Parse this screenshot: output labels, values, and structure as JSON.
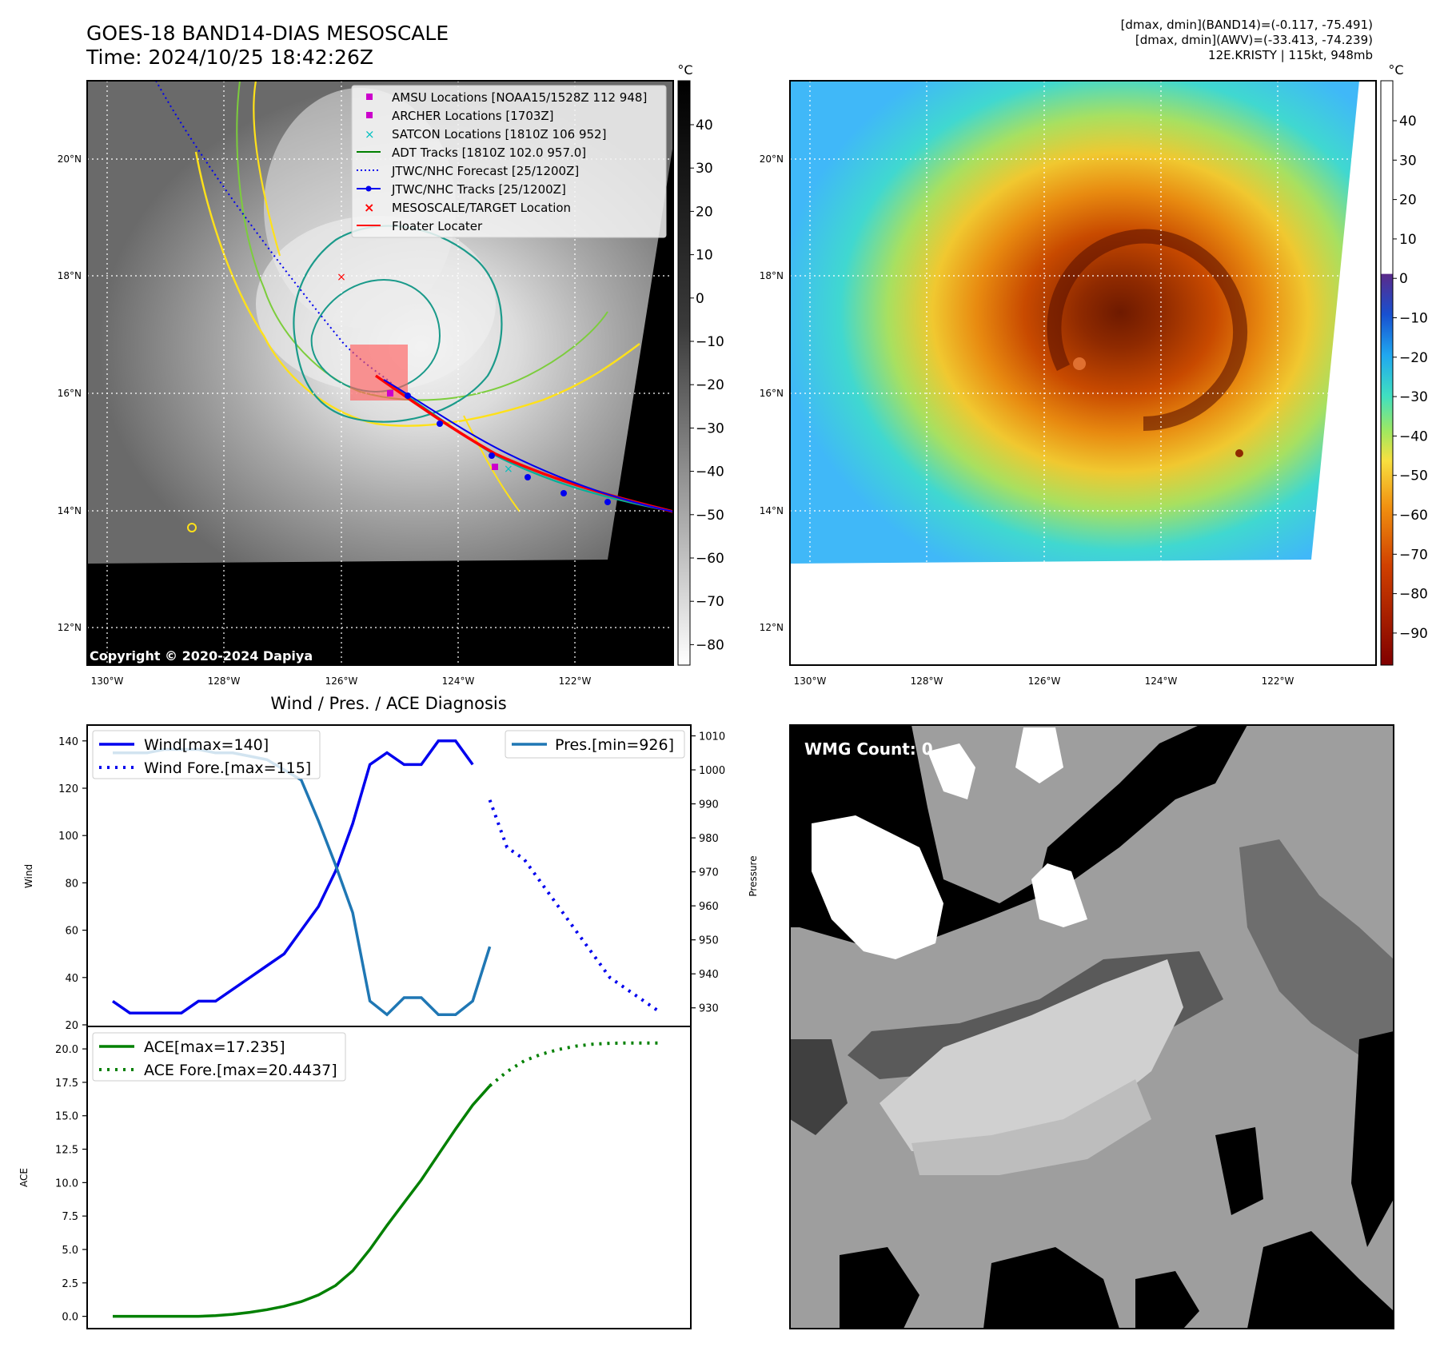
{
  "header": {
    "title_line1": "GOES-18 BAND14-DIAS MESOSCALE",
    "title_line2": "Time: 2024/10/25 18:42:26Z",
    "info_line1": "[dmax, dmin](BAND14)=(-0.117, -75.491)",
    "info_line2": "[dmax, dmin](AWV)=(-33.413, -74.239)",
    "info_line3": "12E.KRISTY | 115kt, 948mb"
  },
  "colors": {
    "wind": "#0000ee",
    "pressure": "#1f77b4",
    "ace": "#008000",
    "track_red": "#ff0000",
    "magenta": "#cc00cc",
    "cyan": "#00c0c0",
    "contour_yellow": "#ffe119",
    "contour_green": "#7ccd3c",
    "contour_teal": "#1a9a8a"
  },
  "maps": {
    "unit_label": "°C",
    "lon_ticks": [
      "130°W",
      "128°W",
      "126°W",
      "124°W",
      "122°W"
    ],
    "lat_ticks": [
      "20°N",
      "18°N",
      "16°N",
      "14°N",
      "12°N"
    ],
    "copyright": "Copyright © 2020-2024 Dapiya",
    "left_colorbar_ticks": [
      "40",
      "30",
      "20",
      "10",
      "0",
      "−10",
      "−20",
      "−30",
      "−40",
      "−50",
      "−60",
      "−70",
      "−80"
    ],
    "right_colorbar_ticks": [
      "40",
      "30",
      "20",
      "10",
      "0",
      "−10",
      "−20",
      "−30",
      "−40",
      "−50",
      "−60",
      "−70",
      "−80",
      "−90"
    ]
  },
  "legend": {
    "amsu": "AMSU Locations [NOAA15/1528Z 112 948]",
    "archer": "ARCHER Locations [1703Z]",
    "satcon": "SATCON Locations [1810Z 106 952]",
    "adt": "ADT Tracks [1810Z 102.0 957.0]",
    "fcst": "JTWC/NHC Forecast [25/1200Z]",
    "tracks": "JTWC/NHC Tracks [25/1200Z]",
    "meso": "MESOSCALE/TARGET Location",
    "floater": "Floater Locater"
  },
  "wmg": {
    "label": "WMG Count: 0"
  },
  "chart_data": [
    {
      "type": "line",
      "title": "Wind / Pres. / ACE Diagnosis",
      "ylabel": "Wind",
      "y2label": "Pressure",
      "ylim": [
        20,
        145
      ],
      "y2lim": [
        925,
        1012
      ],
      "yticks": [
        20,
        40,
        60,
        80,
        100,
        120,
        140
      ],
      "y2ticks": [
        930,
        940,
        950,
        960,
        970,
        980,
        990,
        1000,
        1010
      ],
      "series": [
        {
          "name": "Wind[max=140]",
          "style": "solid",
          "x": [
            0,
            1,
            2,
            3,
            4,
            5,
            6,
            7,
            8,
            9,
            10,
            11,
            12,
            13,
            14,
            15,
            16,
            17,
            18,
            19,
            20,
            21
          ],
          "values": [
            30,
            25,
            25,
            25,
            25,
            30,
            30,
            35,
            40,
            45,
            50,
            60,
            70,
            85,
            105,
            130,
            135,
            130,
            130,
            140,
            140,
            130
          ]
        },
        {
          "name": "Wind Fore.[max=115]",
          "style": "dotted",
          "x": [
            22,
            23,
            24,
            25,
            26,
            27,
            28,
            29,
            30,
            31,
            32
          ],
          "values": [
            115,
            95,
            90,
            80,
            70,
            60,
            50,
            40,
            35,
            30,
            25
          ]
        },
        {
          "name": "Pres.[min=926]",
          "style": "solid",
          "axis": "y2",
          "x": [
            0,
            1,
            2,
            3,
            4,
            5,
            6,
            7,
            8,
            9,
            10,
            11,
            12,
            13,
            14,
            15,
            16,
            17,
            18,
            19,
            20,
            21,
            22
          ],
          "values": [
            1005,
            1005,
            1005,
            1006,
            1006,
            1006,
            1005,
            1005,
            1004,
            1003,
            1000,
            997,
            985,
            972,
            958,
            932,
            928,
            933,
            933,
            928,
            928,
            932,
            948
          ]
        }
      ]
    },
    {
      "type": "line",
      "ylabel": "ACE",
      "ylim": [
        -0.8,
        21.5
      ],
      "yticks": [
        "0.0",
        "2.5",
        "5.0",
        "7.5",
        "10.0",
        "12.5",
        "15.0",
        "17.5",
        "20.0"
      ],
      "series": [
        {
          "name": "ACE[max=17.235]",
          "style": "solid",
          "x": [
            0,
            1,
            2,
            3,
            4,
            5,
            6,
            7,
            8,
            9,
            10,
            11,
            12,
            13,
            14,
            15,
            16,
            17,
            18,
            19,
            20,
            21,
            22
          ],
          "values": [
            0,
            0,
            0,
            0,
            0,
            0,
            0.05,
            0.15,
            0.3,
            0.5,
            0.75,
            1.1,
            1.6,
            2.3,
            3.4,
            5.0,
            6.8,
            8.5,
            10.2,
            12.1,
            14.0,
            15.8,
            17.235
          ]
        },
        {
          "name": "ACE Fore.[max=20.4437]",
          "style": "dotted",
          "x": [
            22,
            23,
            24,
            25,
            26,
            27,
            28,
            29,
            30,
            31,
            32
          ],
          "values": [
            17.235,
            18.3,
            19.1,
            19.6,
            19.95,
            20.2,
            20.35,
            20.42,
            20.44,
            20.44,
            20.44
          ]
        }
      ]
    }
  ]
}
